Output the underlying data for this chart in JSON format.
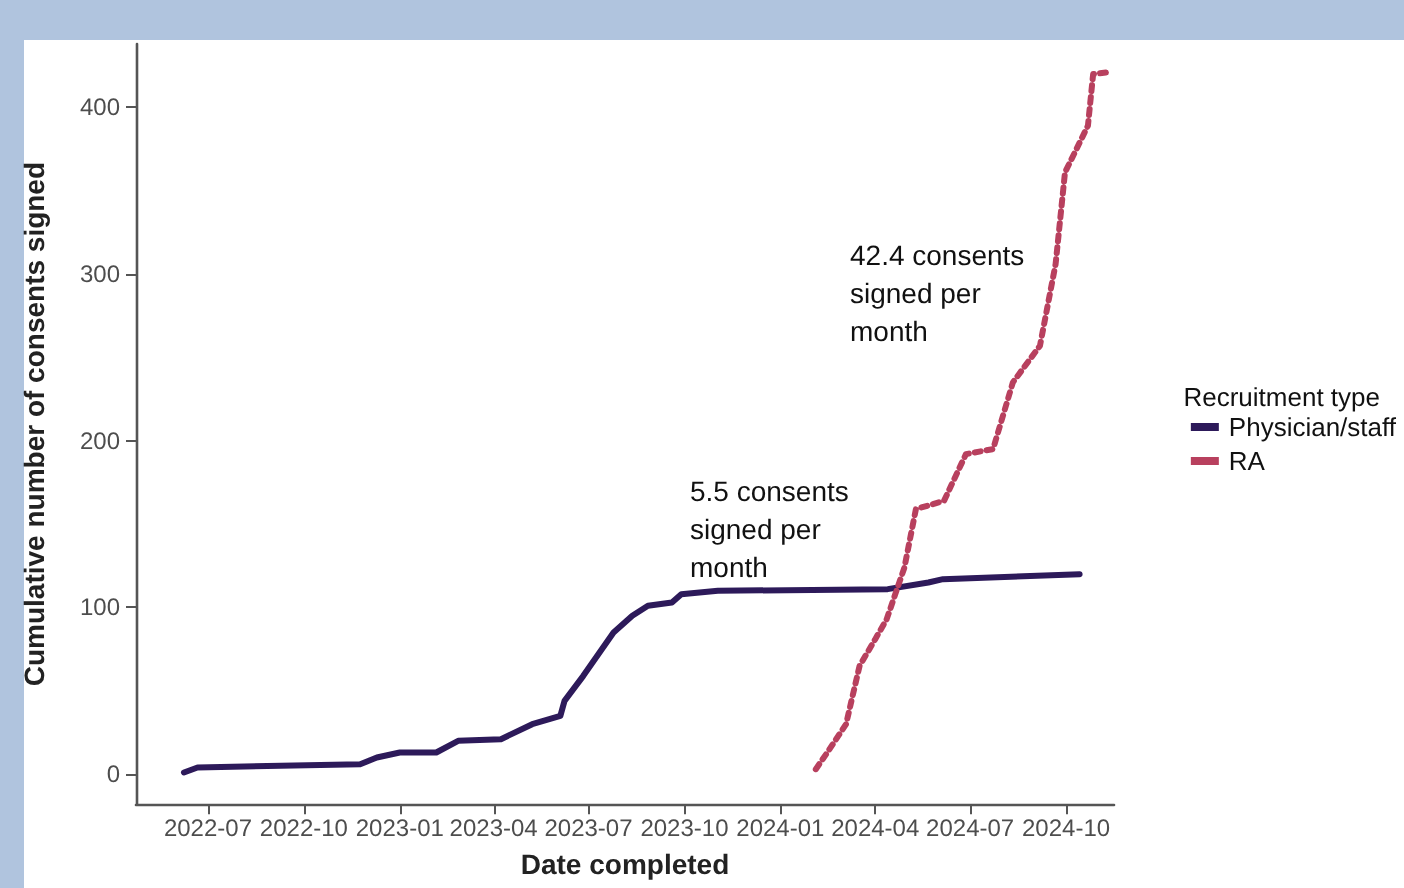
{
  "chart_data": {
    "type": "line",
    "xlabel": "Date completed",
    "ylabel": "Cumulative number of consents signed",
    "legend_title": "Recruitment type",
    "legend": "right",
    "grid": false,
    "marker": "none",
    "xlim": [
      "2022-04-23",
      "2024-11-16"
    ],
    "ylim": [
      -18,
      438
    ],
    "xticks": [
      {
        "value": "2022-07-01",
        "label": "2022-07"
      },
      {
        "value": "2022-10-01",
        "label": "2022-10"
      },
      {
        "value": "2023-01-01",
        "label": "2023-01"
      },
      {
        "value": "2023-04-01",
        "label": "2023-04"
      },
      {
        "value": "2023-07-01",
        "label": "2023-07"
      },
      {
        "value": "2023-10-01",
        "label": "2023-10"
      },
      {
        "value": "2024-01-01",
        "label": "2024-01"
      },
      {
        "value": "2024-04-01",
        "label": "2024-04"
      },
      {
        "value": "2024-07-01",
        "label": "2024-07"
      },
      {
        "value": "2024-10-01",
        "label": "2024-10"
      }
    ],
    "yticks": [
      0,
      100,
      200,
      300,
      400
    ],
    "series": [
      {
        "name": "Physician/staff",
        "color": "#2d1a5a",
        "line_style": "solid",
        "x": [
          "2022-06-08",
          "2022-06-21",
          "2022-11-24",
          "2022-12-10",
          "2023-01-01",
          "2023-02-05",
          "2023-02-26",
          "2023-04-08",
          "2023-05-08",
          "2023-06-04",
          "2023-06-08",
          "2023-06-26",
          "2023-07-25",
          "2023-08-12",
          "2023-08-27",
          "2023-09-19",
          "2023-09-28",
          "2023-11-02",
          "2024-04-13",
          "2024-05-22",
          "2024-06-05",
          "2024-10-14"
        ],
        "values": [
          1,
          4,
          6,
          10,
          13,
          13,
          20,
          21,
          30,
          35,
          44,
          59,
          85,
          95,
          101,
          103,
          108,
          110,
          111,
          115,
          117,
          120
        ]
      },
      {
        "name": "RA",
        "color": "#b8405e",
        "line_style": "dashed",
        "x": [
          "2024-02-04",
          "2024-02-15",
          "2024-03-04",
          "2024-03-17",
          "2024-04-01",
          "2024-04-12",
          "2024-04-29",
          "2024-05-10",
          "2024-06-06",
          "2024-06-27",
          "2024-07-23",
          "2024-08-11",
          "2024-09-06",
          "2024-09-21",
          "2024-09-30",
          "2024-10-22",
          "2024-10-27",
          "2024-11-10"
        ],
        "values": [
          3,
          13,
          30,
          65,
          81,
          93,
          124,
          159,
          164,
          192,
          195,
          235,
          257,
          306,
          361,
          389,
          420,
          421
        ]
      }
    ],
    "annotations": [
      "42.4 consents\nsigned per\nmonth",
      "5.5 consents\nsigned per\nmonth"
    ]
  }
}
